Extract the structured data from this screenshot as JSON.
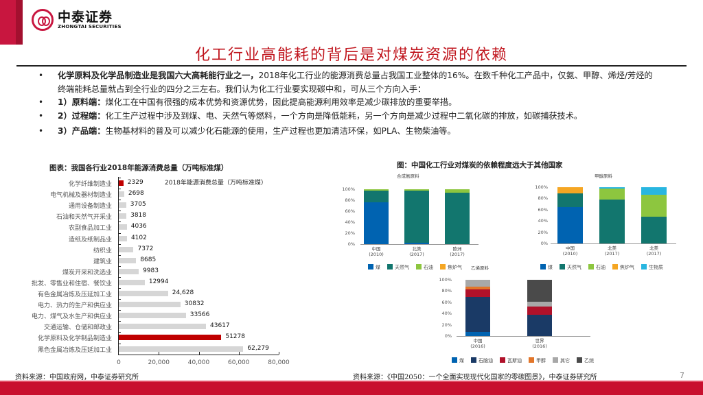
{
  "header": {
    "logo_cn": "中泰证券",
    "logo_en": "ZHONGTAI SECURITIES",
    "title": "化工行业高能耗的背后是对煤炭资源的依赖"
  },
  "bullets": [
    {
      "bold": "化学原料及化学品制造业是我国六大高耗能行业之一，",
      "text": "2018年化工行业的能源消费总量占我国工业整体的16%。在数千种化工产品中，仅氨、甲醇、烯烃/芳烃的终端能耗总量就占到全行业的四分之三左右。我们认为化工行业要实现碳中和，可从三个方向入手："
    },
    {
      "bold": "1）原料端：",
      "text": "煤化工在中国有很强的成本优势和资源优势，因此提高能源利用效率是减少碳排放的重要举措。"
    },
    {
      "bold": "2）过程端：",
      "text": "化工生产过程中涉及到煤、电、天然气等燃料，一个方向是降低能耗，另一个方向是减少过程中二氧化碳的排放，如碳捕获技术。"
    },
    {
      "bold": "3）产品端：",
      "text": "生物基材料的普及可以减少化石能源的使用，生产过程也更加清洁环保，如PLA、生物柴油等。"
    }
  ],
  "colors": {
    "brand_red": "#c8163f",
    "title_red": "#c0151d",
    "highlight_bar": "#c00000",
    "gray_bar": "#d6d6d6",
    "coal": "#0063b1",
    "natural_gas": "#12766e",
    "oil": "#8dc63f",
    "coke_gas": "#f5a623",
    "biomass": "#29b6e0",
    "naphtha": "#1a3a66",
    "gas_oil": "#b0112a",
    "methanol": "#e2762a",
    "other": "#a8a8a8",
    "ethane": "#4a4a4a"
  },
  "left_chart": {
    "title": "图表：我国各行业2018年能源消费总量（万吨标准煤）",
    "legend": "2018年能源消费总量（万吨标准煤）",
    "source": "资料来源：中国政府网，中泰证券研究所"
  },
  "right_chart": {
    "title": "图：中国化工行业对煤炭的依赖程度远大于其他国家",
    "source": "资料来源：《中国2050：一个全面实现现代化国家的零碳图景》，中泰证券研究所"
  },
  "page_number": "7",
  "chart_data": [
    {
      "type": "bar",
      "orientation": "horizontal",
      "title": "图表：我国各行业2018年能源消费总量（万吨标准煤）",
      "legend": [
        "2018年能源消费总量（万吨标准煤）"
      ],
      "categories": [
        "化学纤维制造业",
        "电气机械及器材制造业",
        "通用设备制造业",
        "石油和天然气开采业",
        "农副食品加工业",
        "造纸及纸制品业",
        "纺织业",
        "建筑业",
        "煤炭开采和洗选业",
        "批发、零售业和住宿、餐饮业",
        "有色金属冶炼及压延加工业",
        "电力、热力的生产和供应业",
        "电力、煤气及水生产和供应业",
        "交通运输、仓储和邮政业",
        "化学原料及化学制品制造业",
        "黑色金属冶炼及压延加工业"
      ],
      "values": [
        2329,
        2698,
        3705,
        3818,
        4036,
        4102,
        7372,
        8685,
        9983,
        12994,
        24628,
        30832,
        33566,
        43617,
        51278,
        62279
      ],
      "value_labels": [
        "2329",
        "2698",
        "3705",
        "3818",
        "4036",
        "4102",
        "7372",
        "8685",
        "9983",
        "12994",
        "24,628",
        "30832",
        "33566",
        "43617",
        "51278",
        "62,279"
      ],
      "highlighted": [
        "化学纤维制造业",
        "化学原料及化学制品制造业"
      ],
      "xlim": [
        0,
        80000
      ],
      "xticks": [
        "0",
        "20,000",
        "40,000",
        "60,000",
        "80,000"
      ],
      "grid": false
    },
    {
      "type": "bar",
      "stacked": true,
      "title": "合成氨原料",
      "categories": [
        "中国\n(2010)",
        "北美\n(2017)",
        "欧洲\n(2017)"
      ],
      "series": [
        {
          "name": "煤",
          "values": [
            76,
            2,
            0
          ]
        },
        {
          "name": "天然气",
          "values": [
            22,
            96,
            94
          ]
        },
        {
          "name": "石油",
          "values": [
            2,
            2,
            6
          ]
        },
        {
          "name": "焦炉气",
          "values": [
            0,
            0,
            0
          ]
        }
      ],
      "yticks": [
        "0%",
        "20%",
        "40%",
        "60%",
        "80%",
        "100%"
      ],
      "ylim": [
        0,
        100
      ],
      "legend": [
        "煤",
        "天然气",
        "石油",
        "焦炉气"
      ]
    },
    {
      "type": "bar",
      "stacked": true,
      "title": "甲醇原料",
      "categories": [
        "中国\n(2010)",
        "北美\n(2017)",
        "北美\n(2017)"
      ],
      "series": [
        {
          "name": "煤",
          "values": [
            65,
            0,
            0
          ]
        },
        {
          "name": "天然气",
          "values": [
            24,
            78,
            47
          ]
        },
        {
          "name": "石油",
          "values": [
            0,
            20,
            40
          ]
        },
        {
          "name": "焦炉气",
          "values": [
            11,
            0,
            0
          ]
        },
        {
          "name": "生物质",
          "values": [
            0,
            2,
            13
          ]
        }
      ],
      "yticks": [
        "0%",
        "20%",
        "40%",
        "60%",
        "80%",
        "100%"
      ],
      "ylim": [
        0,
        100
      ],
      "legend": [
        "煤",
        "天然气",
        "石油",
        "焦炉气",
        "生物质"
      ]
    },
    {
      "type": "bar",
      "stacked": true,
      "title": "乙烯原料",
      "categories": [
        "中国\n(2016)",
        "世界\n(2016)"
      ],
      "series": [
        {
          "name": "煤",
          "values": [
            7,
            0
          ]
        },
        {
          "name": "石脑油",
          "values": [
            63,
            38
          ]
        },
        {
          "name": "瓦斯油",
          "values": [
            13,
            14
          ]
        },
        {
          "name": "甲醇",
          "values": [
            5,
            0
          ]
        },
        {
          "name": "其它",
          "values": [
            12,
            9
          ]
        },
        {
          "name": "乙烷",
          "values": [
            0,
            39
          ]
        }
      ],
      "yticks": [
        "0%",
        "20%",
        "40%",
        "60%",
        "80%",
        "100%"
      ],
      "ylim": [
        0,
        100
      ],
      "legend": [
        "煤",
        "石脑油",
        "瓦斯油",
        "甲醇",
        "其它",
        "乙烷"
      ]
    }
  ]
}
